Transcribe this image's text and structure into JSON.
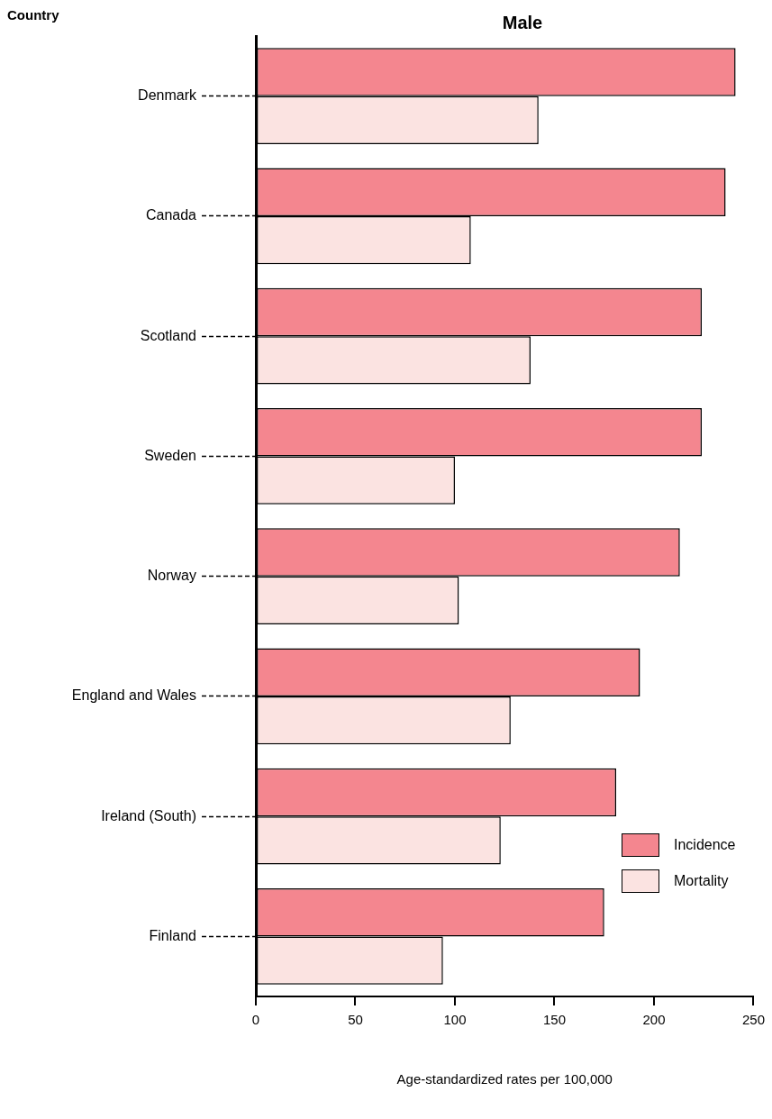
{
  "chart_data": {
    "type": "bar",
    "orientation": "horizontal",
    "title": "Male",
    "ylabel": "Country",
    "xlabel": "Age-standardized rates per 100,000",
    "categories": [
      "Denmark",
      "Canada",
      "Scotland",
      "Sweden",
      "Norway",
      "England and Wales",
      "Ireland (South)",
      "Finland"
    ],
    "series": [
      {
        "name": "Incidence",
        "color": "#f4868f",
        "values": [
          241,
          236,
          224,
          224,
          213,
          193,
          181,
          175
        ]
      },
      {
        "name": "Mortality",
        "color": "#fbe3e1",
        "values": [
          142,
          108,
          138,
          100,
          102,
          128,
          123,
          94
        ]
      }
    ],
    "xlim": [
      0,
      250
    ],
    "xticks": [
      0,
      50,
      100,
      150,
      200,
      250
    ],
    "grid": false,
    "legend": "bottom right"
  }
}
